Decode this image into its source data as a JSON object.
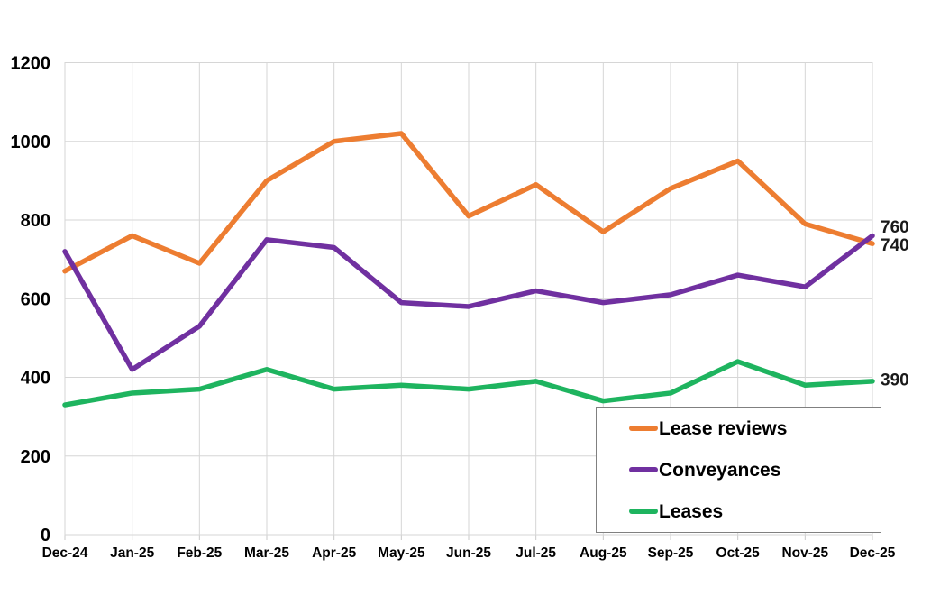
{
  "chart_data": {
    "type": "line",
    "categories": [
      "Dec-24",
      "Jan-25",
      "Feb-25",
      "Mar-25",
      "Apr-25",
      "May-25",
      "Jun-25",
      "Jul-25",
      "Aug-25",
      "Sep-25",
      "Oct-25",
      "Nov-25",
      "Dec-25"
    ],
    "series": [
      {
        "name": "Lease reviews",
        "color": "#ED7D31",
        "values": [
          670,
          760,
          690,
          900,
          1000,
          1020,
          810,
          890,
          770,
          880,
          950,
          790,
          740
        ]
      },
      {
        "name": "Conveyances",
        "color": "#7030A0",
        "values": [
          720,
          420,
          530,
          750,
          730,
          590,
          580,
          620,
          590,
          610,
          660,
          630,
          760
        ]
      },
      {
        "name": "Leases",
        "color": "#1EB45F",
        "values": [
          330,
          360,
          370,
          420,
          370,
          380,
          370,
          390,
          340,
          360,
          440,
          380,
          390
        ]
      }
    ],
    "ylim": [
      0,
      1200
    ],
    "yticks": [
      "0",
      "200",
      "400",
      "600",
      "800",
      "1000",
      "1200"
    ],
    "grid": true,
    "legend_position": "bottom-right",
    "end_labels": [
      {
        "series": "Conveyances",
        "text": "760",
        "value": 760
      },
      {
        "series": "Lease reviews",
        "text": "740",
        "value": 740
      },
      {
        "series": "Leases",
        "text": "390",
        "value": 390
      }
    ]
  }
}
